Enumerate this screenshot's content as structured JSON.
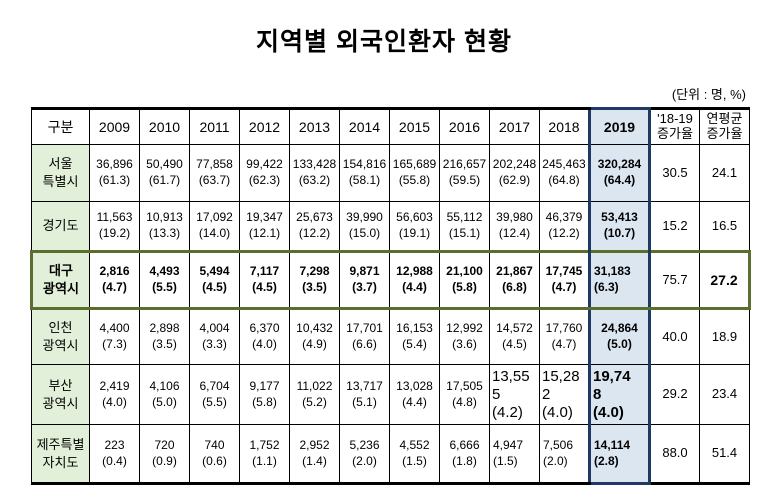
{
  "title": "지역별 외국인환자 현황",
  "unit_label": "(단위 : 명, %)",
  "colors": {
    "highlight_column_bg": "#dce6f1",
    "highlight_column_border": "#1f3864",
    "region_column_bg": "#e2efd9",
    "emphasis_row_border": "#5b6e2e"
  },
  "table": {
    "columns": [
      "구분",
      "2009",
      "2010",
      "2011",
      "2012",
      "2013",
      "2014",
      "2015",
      "2016",
      "2017",
      "2018",
      "2019",
      "'18-19\n증가율",
      "연평균\n증가율"
    ],
    "rows": [
      {
        "name": "서울\n특별시",
        "cells": [
          [
            "36,896",
            "(61.3)"
          ],
          [
            "50,490",
            "(61.7)"
          ],
          [
            "77,858",
            "(63.7)"
          ],
          [
            "99,422",
            "(62.3)"
          ],
          [
            "133,428",
            "(63.2)"
          ],
          [
            "154,816",
            "(58.1)"
          ],
          [
            "165,689",
            "(55.8)"
          ],
          [
            "216,657",
            "(59.5)"
          ],
          [
            "202,248",
            "(62.9)"
          ],
          [
            "245,463",
            "(64.8)"
          ],
          [
            "320,284",
            "(64.4)"
          ]
        ],
        "growth_18_19": "30.5",
        "avg_growth": "24.1"
      },
      {
        "name": "경기도",
        "cells": [
          [
            "11,563",
            "(19.2)"
          ],
          [
            "10,913",
            "(13.3)"
          ],
          [
            "17,092",
            "(14.0)"
          ],
          [
            "19,347",
            "(12.1)"
          ],
          [
            "25,673",
            "(12.2)"
          ],
          [
            "39,990",
            "(15.0)"
          ],
          [
            "56,603",
            "(19.1)"
          ],
          [
            "55,112",
            "(15.1)"
          ],
          [
            "39,980",
            "(12.4)"
          ],
          [
            "46,379",
            "(12.2)"
          ],
          [
            "53,413",
            "(10.7)"
          ]
        ],
        "growth_18_19": "15.2",
        "avg_growth": "16.5"
      },
      {
        "name": "대구\n광역시",
        "cells": [
          [
            "2,816",
            "(4.7)"
          ],
          [
            "4,493",
            "(5.5)"
          ],
          [
            "5,494",
            "(4.5)"
          ],
          [
            "7,117",
            "(4.5)"
          ],
          [
            "7,298",
            "(3.5)"
          ],
          [
            "9,871",
            "(3.7)"
          ],
          [
            "12,988",
            "(4.4)"
          ],
          [
            "21,100",
            "(5.8)"
          ],
          [
            "21,867",
            "(6.8)"
          ],
          [
            "17,745",
            "(4.7)"
          ],
          [
            "31,183",
            "(6.3)"
          ]
        ],
        "growth_18_19": "75.7",
        "avg_growth": "27.2"
      },
      {
        "name": "인천\n광역시",
        "cells": [
          [
            "4,400",
            "(7.3)"
          ],
          [
            "2,898",
            "(3.5)"
          ],
          [
            "4,004",
            "(3.3)"
          ],
          [
            "6,370",
            "(4.0)"
          ],
          [
            "10,432",
            "(4.9)"
          ],
          [
            "17,701",
            "(6.6)"
          ],
          [
            "16,153",
            "(5.4)"
          ],
          [
            "12,992",
            "(3.6)"
          ],
          [
            "14,572",
            "(4.5)"
          ],
          [
            "17,760",
            "(4.7)"
          ],
          [
            "24,864",
            "(5.0)"
          ]
        ],
        "growth_18_19": "40.0",
        "avg_growth": "18.9"
      },
      {
        "name": "부산\n광역시",
        "cells": [
          [
            "2,419",
            "(4.0)"
          ],
          [
            "4,106",
            "(5.0)"
          ],
          [
            "6,704",
            "(5.5)"
          ],
          [
            "9,177",
            "(5.8)"
          ],
          [
            "11,022",
            "(5.2)"
          ],
          [
            "13,717",
            "(5.1)"
          ],
          [
            "13,028",
            "(4.4)"
          ],
          [
            "17,505",
            "(4.8)"
          ],
          [
            "13,555",
            "(4.2)"
          ],
          [
            "15,282",
            "(4.0)"
          ],
          [
            "19,748",
            "(4.0)"
          ]
        ],
        "growth_18_19": "29.2",
        "avg_growth": "23.4"
      },
      {
        "name": "제주특별\n자치도",
        "cells": [
          [
            "223",
            "(0.4)"
          ],
          [
            "720",
            "(0.9)"
          ],
          [
            "740",
            "(0.6)"
          ],
          [
            "1,752",
            "(1.1)"
          ],
          [
            "2,952",
            "(1.4)"
          ],
          [
            "5,236",
            "(2.0)"
          ],
          [
            "4,552",
            "(1.5)"
          ],
          [
            "6,666",
            "(1.8)"
          ],
          [
            "4,947",
            "(1.5)"
          ],
          [
            "7,506",
            "(2.0)"
          ],
          [
            "14,114",
            "(2.8)"
          ]
        ],
        "growth_18_19": "88.0",
        "avg_growth": "51.4"
      }
    ]
  }
}
